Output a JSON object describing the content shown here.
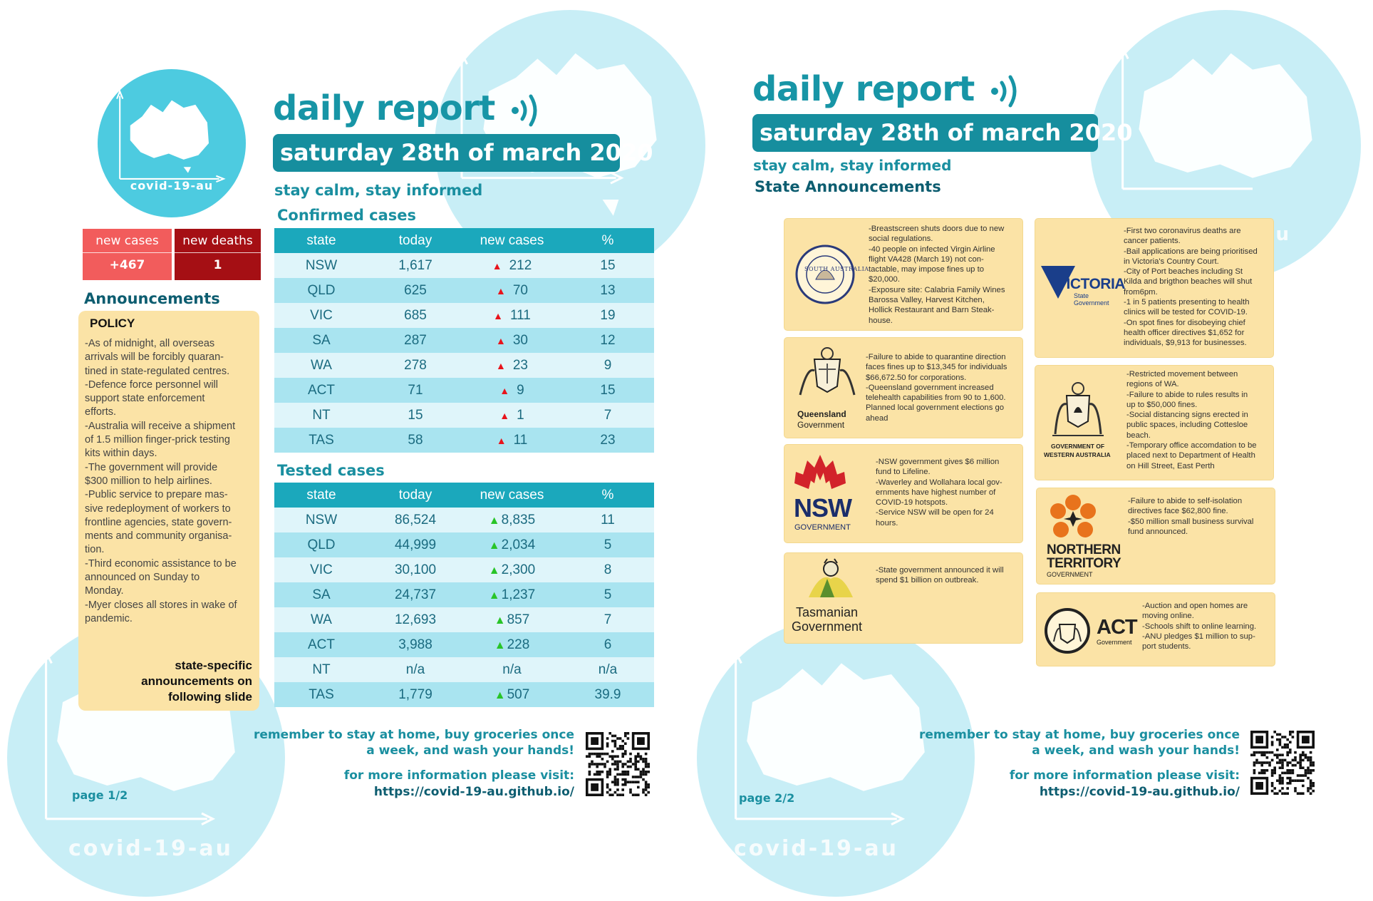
{
  "brand": {
    "name": "covid-19-au"
  },
  "page1": {
    "title": "daily report",
    "date": "saturday 28th of march 2020",
    "tagline": "stay calm, stay informed",
    "stats": {
      "new_cases_label": "new cases",
      "new_cases_value": "+467",
      "new_deaths_label": "new deaths",
      "new_deaths_value": "1"
    },
    "announcements": {
      "heading": "Announcements",
      "policy_title": "POLICY",
      "body": "-As of midnight, all overseas\narrivals will be forcibly quaran-\ntined in state-regulated centres.\n-Defence force personnel will\nsupport state enforcement\nefforts.\n-Australia will receive a shipment\nof 1.5 million finger-prick testing\nkits within days.\n-The government will provide\n$300 million to help airlines.\n-Public service to prepare mas-\nsive redeployment of workers to\nfrontline agencies, state govern-\nments and community organisa-\ntion.\n-Third economic assistance to be\nannounced on Sunday to\nMonday.\n-Myer closes all stores in wake of\npandemic.",
      "footer": "state-specific\nannouncements on\nfollowing slide"
    },
    "confirmed": {
      "title": "Confirmed cases",
      "headers": [
        "state",
        "today",
        "new cases",
        "%"
      ],
      "rows": [
        {
          "state": "NSW",
          "today": "1,617",
          "new": "212",
          "pct": "15"
        },
        {
          "state": "QLD",
          "today": "625",
          "new": "70",
          "pct": "13"
        },
        {
          "state": "VIC",
          "today": "685",
          "new": "111",
          "pct": "19"
        },
        {
          "state": "SA",
          "today": "287",
          "new": "30",
          "pct": "12"
        },
        {
          "state": "WA",
          "today": "278",
          "new": "23",
          "pct": "9"
        },
        {
          "state": "ACT",
          "today": "71",
          "new": "9",
          "pct": "15"
        },
        {
          "state": "NT",
          "today": "15",
          "new": "1",
          "pct": "7"
        },
        {
          "state": "TAS",
          "today": "58",
          "new": "11",
          "pct": "23"
        }
      ]
    },
    "tested": {
      "title": "Tested cases",
      "headers": [
        "state",
        "today",
        "new cases",
        "%"
      ],
      "rows": [
        {
          "state": "NSW",
          "today": "86,524",
          "new": "8,835",
          "pct": "11",
          "arrow": true
        },
        {
          "state": "QLD",
          "today": "44,999",
          "new": "2,034",
          "pct": "5",
          "arrow": true
        },
        {
          "state": "VIC",
          "today": "30,100",
          "new": "2,300",
          "pct": "8",
          "arrow": true
        },
        {
          "state": "SA",
          "today": "24,737",
          "new": "1,237",
          "pct": "5",
          "arrow": true
        },
        {
          "state": "WA",
          "today": "12,693",
          "new": "857",
          "pct": "7",
          "arrow": true
        },
        {
          "state": "ACT",
          "today": "3,988",
          "new": "228",
          "pct": "6",
          "arrow": true
        },
        {
          "state": "NT",
          "today": "n/a",
          "new": "n/a",
          "pct": "n/a",
          "arrow": false
        },
        {
          "state": "TAS",
          "today": "1,779",
          "new": "507",
          "pct": "39.9",
          "arrow": true
        }
      ]
    },
    "footer_msg": "remember to stay at home, buy groceries once\na week, and wash your hands!",
    "info_label": "for more information please visit:",
    "info_url": "https://covid-19-au.github.io/",
    "page_no": "page 1/2"
  },
  "page2": {
    "title": "daily report",
    "date": "saturday 28th of march 2020",
    "tagline": "stay calm, stay informed",
    "section": "State Announcements",
    "cards": {
      "sa": {
        "text": "-Breastscreen shuts doors due to new\nsocial regulations.\n-40 people on infected Virgin Airline\nflight VA428 (March 19) not con-\ntactable, may impose fines up to\n$20,000.\n-Exposure site: Calabria Family Wines\nBarossa Valley, Harvest Kitchen,\nHollick Restaurant and Barn Steak-\nhouse.",
        "logo_text": "SOUTH AUSTRALIA"
      },
      "qld": {
        "text": "-Failure to abide to quarantine direction\nfaces fines up to $13,345 for individuals\n$66,672.50 for corporations.\n-Queensland government increased\ntelehealth capabilities from 90 to 1,600.\nPlanned local government elections go\nahead",
        "logo_line1": "Queensland",
        "logo_line2": "Government"
      },
      "nsw": {
        "text": "-NSW government gives $6 million\nfund to Lifeline.\n-Waverley and Wollahara local gov-\nernments have highest number of\nCOVID-19 hotspots.\n-Service NSW will be open for 24\nhours.",
        "logo_line1": "NSW",
        "logo_line2": "GOVERNMENT"
      },
      "tas": {
        "text": "-State government announced it will\nspend $1 billion on outbreak.",
        "logo_line1": "Tasmanian",
        "logo_line2": "Government"
      },
      "vic": {
        "text": "-First two coronavirus deaths are\ncancer patients.\n-Bail applications are being prioritised\nin Victoria's Country Court.\n-City of Port beaches including St\nKilda and brigthon beaches will shut\nfrom6pm.\n-1 in 5 patients presenting to health\nclinics will be tested for COVID-19.\n-On spot fines for disobeying chief\nhealth officer directives $1,652 for\nindividuals, $9,913 for businesses.",
        "logo_line1": "VICTORIA",
        "logo_line2": "State",
        "logo_line3": "Government"
      },
      "wa": {
        "text": "-Restricted movement between\nregions of WA.\n-Failure to abide to rules results in\nup to $50,000 fines.\n-Social distancing signs erected in\npublic spaces, including Cottesloe\nbeach.\n-Temporary office accomdation to be\nplaced next to Department of Health\non Hill Street, East Perth",
        "logo_line1": "GOVERNMENT OF",
        "logo_line2": "WESTERN AUSTRALIA"
      },
      "nt": {
        "text": "-Failure to abide to self-isolation\ndirectives face $62,800 fine.\n-$50 million small business survival\nfund announced.",
        "logo_line1": "NORTHERN",
        "logo_line2": "TERRITORY",
        "logo_line3": "GOVERNMENT"
      },
      "act": {
        "text": "-Auction and open homes are\nmoving online.\n-Schools shift to online learning.\n-ANU pledges $1 million to sup-\nport students.",
        "logo_line1": "ACT",
        "logo_line2": "Government"
      }
    },
    "footer_msg": "remember to stay at home, buy groceries once\na week, and wash your hands!",
    "info_label": "for more information please visit:",
    "info_url": "https://covid-19-au.github.io/",
    "page_no": "page 2/2"
  },
  "colors": {
    "teal": "#1795a6",
    "light_circle": "#c8eef6",
    "new_cases": "#f05a5a",
    "new_deaths": "#a50f14",
    "card": "#fbe3a6"
  }
}
